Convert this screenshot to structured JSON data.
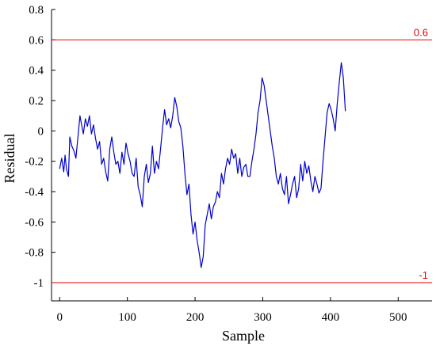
{
  "chart_data": {
    "type": "line",
    "title": "",
    "xlabel": "Sample",
    "ylabel": "Residual",
    "xlim": [
      -12,
      550
    ],
    "ylim": [
      -1.12,
      0.8
    ],
    "xticks": [
      0,
      100,
      200,
      300,
      400,
      500
    ],
    "yticks": [
      -1,
      -0.8,
      -0.6,
      -0.4,
      -0.2,
      0,
      0.2,
      0.4,
      0.6,
      0.8
    ],
    "xtick_labels": [
      "0",
      "100",
      "200",
      "300",
      "400",
      "500"
    ],
    "ytick_labels": [
      "-1",
      "-0.8",
      "-0.6",
      "-0.4",
      "-0.2",
      "0",
      "0.2",
      "0.4",
      "0.6",
      "0.8"
    ],
    "grid": false,
    "reference_lines": [
      {
        "label": "0.6",
        "value": 0.6,
        "color": "#e00000"
      },
      {
        "label": "-1",
        "value": -1,
        "color": "#e00000"
      }
    ],
    "series": [
      {
        "color": "#0000cc",
        "x": [
          0,
          3,
          6,
          8,
          10,
          13,
          15,
          18,
          21,
          24,
          27,
          30,
          32,
          35,
          38,
          41,
          44,
          47,
          50,
          53,
          56,
          59,
          62,
          65,
          68,
          71,
          74,
          77,
          80,
          83,
          86,
          89,
          92,
          95,
          98,
          101,
          104,
          107,
          110,
          113,
          116,
          119,
          122,
          125,
          128,
          131,
          134,
          137,
          140,
          143,
          146,
          149,
          152,
          155,
          158,
          161,
          164,
          167,
          170,
          173,
          176,
          179,
          182,
          185,
          188,
          191,
          194,
          197,
          200,
          203,
          206,
          209,
          212,
          215,
          218,
          221,
          224,
          227,
          230,
          233,
          236,
          239,
          242,
          245,
          248,
          251,
          254,
          257,
          260,
          263,
          266,
          269,
          272,
          275,
          278,
          281,
          284,
          287,
          290,
          293,
          296,
          299,
          302,
          305,
          308,
          311,
          314,
          317,
          320,
          323,
          326,
          329,
          332,
          335,
          338,
          341,
          344,
          347,
          350,
          353,
          356,
          359,
          362,
          365,
          368,
          371,
          374,
          377,
          380,
          383,
          386,
          389,
          392,
          395,
          398,
          401,
          404,
          407,
          410,
          413,
          416,
          419,
          422
        ],
        "y": [
          -0.25,
          -0.18,
          -0.27,
          -0.16,
          -0.25,
          -0.3,
          -0.04,
          -0.1,
          -0.13,
          -0.18,
          -0.04,
          0.1,
          0.05,
          -0.02,
          0.08,
          0.03,
          0.1,
          -0.02,
          0.04,
          -0.05,
          -0.12,
          -0.07,
          -0.22,
          -0.18,
          -0.27,
          -0.33,
          -0.12,
          -0.04,
          -0.14,
          -0.22,
          -0.2,
          -0.28,
          -0.14,
          -0.22,
          -0.08,
          -0.15,
          -0.2,
          -0.28,
          -0.3,
          -0.18,
          -0.37,
          -0.42,
          -0.5,
          -0.3,
          -0.22,
          -0.34,
          -0.28,
          -0.1,
          -0.28,
          -0.2,
          -0.25,
          -0.12,
          0.02,
          0.14,
          0.04,
          0.08,
          0.02,
          0.1,
          0.22,
          0.16,
          0.06,
          0.02,
          -0.1,
          -0.28,
          -0.42,
          -0.35,
          -0.55,
          -0.68,
          -0.6,
          -0.72,
          -0.8,
          -0.9,
          -0.83,
          -0.62,
          -0.55,
          -0.48,
          -0.58,
          -0.5,
          -0.47,
          -0.4,
          -0.44,
          -0.28,
          -0.35,
          -0.25,
          -0.18,
          -0.22,
          -0.12,
          -0.18,
          -0.15,
          -0.28,
          -0.18,
          -0.3,
          -0.24,
          -0.22,
          -0.3,
          -0.3,
          -0.2,
          -0.12,
          -0.02,
          0.12,
          0.2,
          0.35,
          0.3,
          0.2,
          0.1,
          0.0,
          -0.1,
          -0.18,
          -0.3,
          -0.35,
          -0.28,
          -0.38,
          -0.42,
          -0.3,
          -0.48,
          -0.42,
          -0.35,
          -0.3,
          -0.44,
          -0.38,
          -0.22,
          -0.33,
          -0.2,
          -0.28,
          -0.23,
          -0.33,
          -0.4,
          -0.3,
          -0.35,
          -0.41,
          -0.38,
          -0.2,
          -0.04,
          0.12,
          0.18,
          0.14,
          0.08,
          0.0,
          0.18,
          0.32,
          0.45,
          0.35,
          0.13
        ]
      }
    ]
  }
}
